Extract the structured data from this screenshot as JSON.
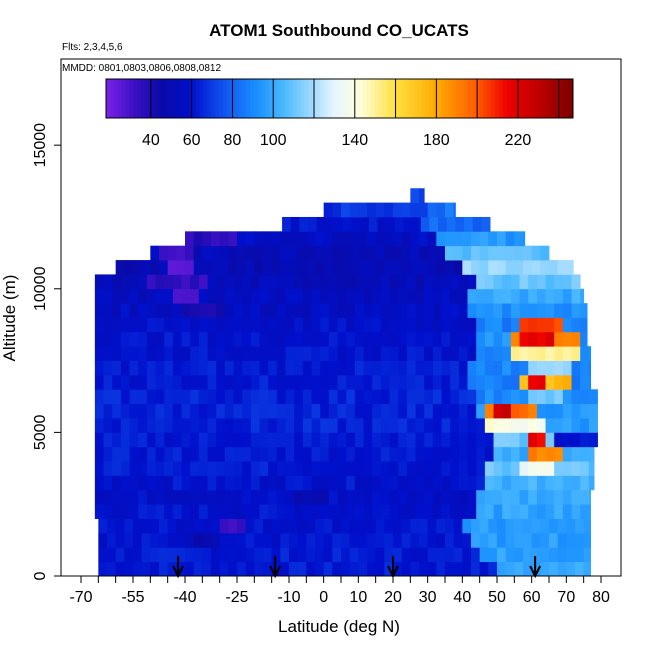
{
  "chart_data": {
    "type": "heatmap",
    "title": "ATOM1 Southbound CO_UCATS",
    "subtitle_flights": "Flts: 2,3,4,5,6",
    "subtitle_dates": "MMDD: 0801,0803,0806,0808,0812",
    "xlabel": "Latitude (deg N)",
    "ylabel": "Altitude (m)",
    "xlim": [
      -70,
      80
    ],
    "ylim": [
      0,
      18000
    ],
    "x_ticks": [
      {
        "v": -70,
        "label": "-70"
      },
      {
        "v": -65,
        "label": ""
      },
      {
        "v": -60,
        "label": ""
      },
      {
        "v": -55,
        "label": "-55"
      },
      {
        "v": -50,
        "label": ""
      },
      {
        "v": -45,
        "label": ""
      },
      {
        "v": -40,
        "label": "-40"
      },
      {
        "v": -35,
        "label": ""
      },
      {
        "v": -30,
        "label": ""
      },
      {
        "v": -25,
        "label": "-25"
      },
      {
        "v": -20,
        "label": ""
      },
      {
        "v": -15,
        "label": ""
      },
      {
        "v": -10,
        "label": "-10"
      },
      {
        "v": -5,
        "label": ""
      },
      {
        "v": 0,
        "label": "0"
      },
      {
        "v": 5,
        "label": ""
      },
      {
        "v": 10,
        "label": "10"
      },
      {
        "v": 15,
        "label": ""
      },
      {
        "v": 20,
        "label": "20"
      },
      {
        "v": 25,
        "label": ""
      },
      {
        "v": 30,
        "label": "30"
      },
      {
        "v": 35,
        "label": ""
      },
      {
        "v": 40,
        "label": "40"
      },
      {
        "v": 45,
        "label": ""
      },
      {
        "v": 50,
        "label": "50"
      },
      {
        "v": 55,
        "label": ""
      },
      {
        "v": 60,
        "label": "60"
      },
      {
        "v": 65,
        "label": ""
      },
      {
        "v": 70,
        "label": "70"
      },
      {
        "v": 75,
        "label": ""
      },
      {
        "v": 80,
        "label": "80"
      }
    ],
    "y_ticks": [
      {
        "v": 0,
        "label": "0"
      },
      {
        "v": 5000,
        "label": "5000"
      },
      {
        "v": 10000,
        "label": "10000"
      },
      {
        "v": 15000,
        "label": "15000"
      }
    ],
    "colorbar": {
      "range": [
        18,
        247
      ],
      "labels": [
        "40",
        "60",
        "80",
        "100",
        "140",
        "180",
        "220"
      ],
      "label_values": [
        40,
        60,
        80,
        100,
        140,
        180,
        220
      ],
      "lines": [
        40,
        60,
        80,
        100,
        120,
        140,
        160,
        180,
        200,
        220,
        240
      ],
      "colors": [
        {
          "v": 18,
          "c": "#7a22e8"
        },
        {
          "v": 32,
          "c": "#3b10c4"
        },
        {
          "v": 45,
          "c": "#0a0aa8"
        },
        {
          "v": 60,
          "c": "#0010cc"
        },
        {
          "v": 75,
          "c": "#1050ee"
        },
        {
          "v": 92,
          "c": "#1a90ff"
        },
        {
          "v": 105,
          "c": "#4ab8ff"
        },
        {
          "v": 118,
          "c": "#9ad8ff"
        },
        {
          "v": 130,
          "c": "#e6f6ff"
        },
        {
          "v": 142,
          "c": "#ffffe0"
        },
        {
          "v": 160,
          "c": "#ffe040"
        },
        {
          "v": 180,
          "c": "#ffaa00"
        },
        {
          "v": 200,
          "c": "#ff5a00"
        },
        {
          "v": 215,
          "c": "#ee0000"
        },
        {
          "v": 232,
          "c": "#b80000"
        },
        {
          "v": 247,
          "c": "#7a0000"
        }
      ]
    },
    "flight_markers_lat": [
      -42,
      -14,
      20,
      61
    ],
    "bands": [
      {
        "y0": 0,
        "y1": 500,
        "x0": -65,
        "x1": 77,
        "base": 62,
        "anoms": [
          {
            "x0": 48,
            "x1": 77,
            "v": 100
          }
        ]
      },
      {
        "y0": 500,
        "y1": 1000,
        "x0": -65,
        "x1": 77,
        "base": 62,
        "anoms": [
          {
            "x0": 45,
            "x1": 77,
            "v": 98
          }
        ]
      },
      {
        "y0": 1000,
        "y1": 1500,
        "x0": -65,
        "x1": 77,
        "base": 60,
        "anoms": [
          {
            "x0": 42,
            "x1": 77,
            "v": 96
          },
          {
            "x0": -42,
            "x1": -30,
            "v": 50
          }
        ]
      },
      {
        "y0": 1500,
        "y1": 2000,
        "x0": -65,
        "x1": 77,
        "base": 60,
        "anoms": [
          {
            "x0": 40,
            "x1": 77,
            "v": 95
          },
          {
            "x0": -30,
            "x1": -23,
            "v": 35
          }
        ]
      },
      {
        "y0": 2000,
        "y1": 2500,
        "x0": -66,
        "x1": 77,
        "base": 60,
        "anoms": [
          {
            "x0": 42,
            "x1": 77,
            "v": 98
          }
        ]
      },
      {
        "y0": 2500,
        "y1": 3000,
        "x0": -66,
        "x1": 77,
        "base": 58,
        "anoms": [
          {
            "x0": 43,
            "x1": 77,
            "v": 100
          },
          {
            "x0": -10,
            "x1": 0,
            "v": 48
          }
        ]
      },
      {
        "y0": 3000,
        "y1": 3500,
        "x0": -66,
        "x1": 78,
        "base": 60,
        "anoms": [
          {
            "x0": 45,
            "x1": 78,
            "v": 102
          }
        ]
      },
      {
        "y0": 3500,
        "y1": 4000,
        "x0": -66,
        "x1": 78,
        "base": 62,
        "anoms": [
          {
            "x0": 46,
            "x1": 78,
            "v": 110
          },
          {
            "x0": 55,
            "x1": 65,
            "v": 135
          }
        ]
      },
      {
        "y0": 4000,
        "y1": 4500,
        "x0": -66,
        "x1": 78,
        "base": 62,
        "anoms": [
          {
            "x0": 48,
            "x1": 78,
            "v": 100
          },
          {
            "x0": 57,
            "x1": 67,
            "v": 190
          }
        ]
      },
      {
        "y0": 4500,
        "y1": 5000,
        "x0": -66,
        "x1": 79,
        "base": 62,
        "anoms": [
          {
            "x0": 48,
            "x1": 66,
            "v": 110
          },
          {
            "x0": 58,
            "x1": 63,
            "v": 215
          }
        ]
      },
      {
        "y0": 5000,
        "y1": 5500,
        "x0": -66,
        "x1": 79,
        "base": 64,
        "anoms": [
          {
            "x0": 45,
            "x1": 79,
            "v": 95
          },
          {
            "x0": 46,
            "x1": 64,
            "v": 140
          }
        ]
      },
      {
        "y0": 5500,
        "y1": 6000,
        "x0": -66,
        "x1": 79,
        "base": 64,
        "anoms": [
          {
            "x0": 42,
            "x1": 79,
            "v": 95
          },
          {
            "x0": 46,
            "x1": 60,
            "v": 195
          },
          {
            "x0": 48,
            "x1": 52,
            "v": 225
          }
        ]
      },
      {
        "y0": 6000,
        "y1": 6500,
        "x0": -66,
        "x1": 79,
        "base": 64,
        "anoms": [
          {
            "x0": 42,
            "x1": 79,
            "v": 90
          },
          {
            "x0": 58,
            "x1": 68,
            "v": 110
          }
        ]
      },
      {
        "y0": 6500,
        "y1": 7000,
        "x0": -66,
        "x1": 77,
        "base": 62,
        "anoms": [
          {
            "x0": 40,
            "x1": 77,
            "v": 88
          },
          {
            "x0": 55,
            "x1": 70,
            "v": 175
          },
          {
            "x0": 58,
            "x1": 64,
            "v": 215
          }
        ]
      },
      {
        "y0": 7000,
        "y1": 7500,
        "x0": -66,
        "x1": 77,
        "base": 62,
        "anoms": [
          {
            "x0": 40,
            "x1": 77,
            "v": 90
          },
          {
            "x0": 58,
            "x1": 70,
            "v": 120
          }
        ]
      },
      {
        "y0": 7500,
        "y1": 8000,
        "x0": -66,
        "x1": 77,
        "base": 60,
        "anoms": [
          {
            "x0": 42,
            "x1": 77,
            "v": 92
          },
          {
            "x0": 53,
            "x1": 72,
            "v": 150
          }
        ]
      },
      {
        "y0": 8000,
        "y1": 8500,
        "x0": -66,
        "x1": 76,
        "base": 60,
        "anoms": [
          {
            "x0": 42,
            "x1": 76,
            "v": 92
          },
          {
            "x0": 52,
            "x1": 72,
            "v": 190
          },
          {
            "x0": 56,
            "x1": 66,
            "v": 218
          }
        ]
      },
      {
        "y0": 8500,
        "y1": 9000,
        "x0": -66,
        "x1": 76,
        "base": 58,
        "anoms": [
          {
            "x0": 42,
            "x1": 76,
            "v": 88
          },
          {
            "x0": 55,
            "x1": 67,
            "v": 205
          }
        ]
      },
      {
        "y0": 9000,
        "y1": 9500,
        "x0": -66,
        "x1": 76,
        "base": 56,
        "anoms": [
          {
            "x0": 40,
            "x1": 76,
            "v": 92
          },
          {
            "x0": -42,
            "x1": -30,
            "v": 42
          }
        ]
      },
      {
        "y0": 9500,
        "y1": 10000,
        "x0": -66,
        "x1": 75,
        "base": 55,
        "anoms": [
          {
            "x0": 40,
            "x1": 75,
            "v": 100
          },
          {
            "x0": -44,
            "x1": -38,
            "v": 30
          }
        ]
      },
      {
        "y0": 10000,
        "y1": 10500,
        "x0": -66,
        "x1": 74,
        "base": 52,
        "anoms": [
          {
            "x0": 42,
            "x1": 74,
            "v": 110
          },
          {
            "x0": -52,
            "x1": -35,
            "v": 35
          }
        ]
      },
      {
        "y0": 10500,
        "y1": 11000,
        "x0": -60,
        "x1": 72,
        "base": 50,
        "anoms": [
          {
            "x0": 40,
            "x1": 72,
            "v": 118
          },
          {
            "x0": -46,
            "x1": -38,
            "v": 28
          }
        ]
      },
      {
        "y0": 11000,
        "y1": 11500,
        "x0": -50,
        "x1": 65,
        "base": 52,
        "anoms": [
          {
            "x0": 35,
            "x1": 65,
            "v": 108
          },
          {
            "x0": -48,
            "x1": -38,
            "v": 32
          }
        ]
      },
      {
        "y0": 11500,
        "y1": 12000,
        "x0": -40,
        "x1": 58,
        "base": 56,
        "anoms": [
          {
            "x0": 32,
            "x1": 58,
            "v": 95
          },
          {
            "x0": -40,
            "x1": -25,
            "v": 38
          }
        ]
      },
      {
        "y0": 12000,
        "y1": 12500,
        "x0": -12,
        "x1": 48,
        "base": 60,
        "anoms": [
          {
            "x0": 28,
            "x1": 48,
            "v": 82
          }
        ]
      },
      {
        "y0": 12500,
        "y1": 13000,
        "x0": 0,
        "x1": 38,
        "base": 68,
        "anoms": [
          {
            "x0": 30,
            "x1": 38,
            "v": 85
          }
        ]
      },
      {
        "y0": 13000,
        "y1": 13500,
        "x0": 25,
        "x1": 29,
        "base": 72,
        "anoms": []
      }
    ]
  }
}
